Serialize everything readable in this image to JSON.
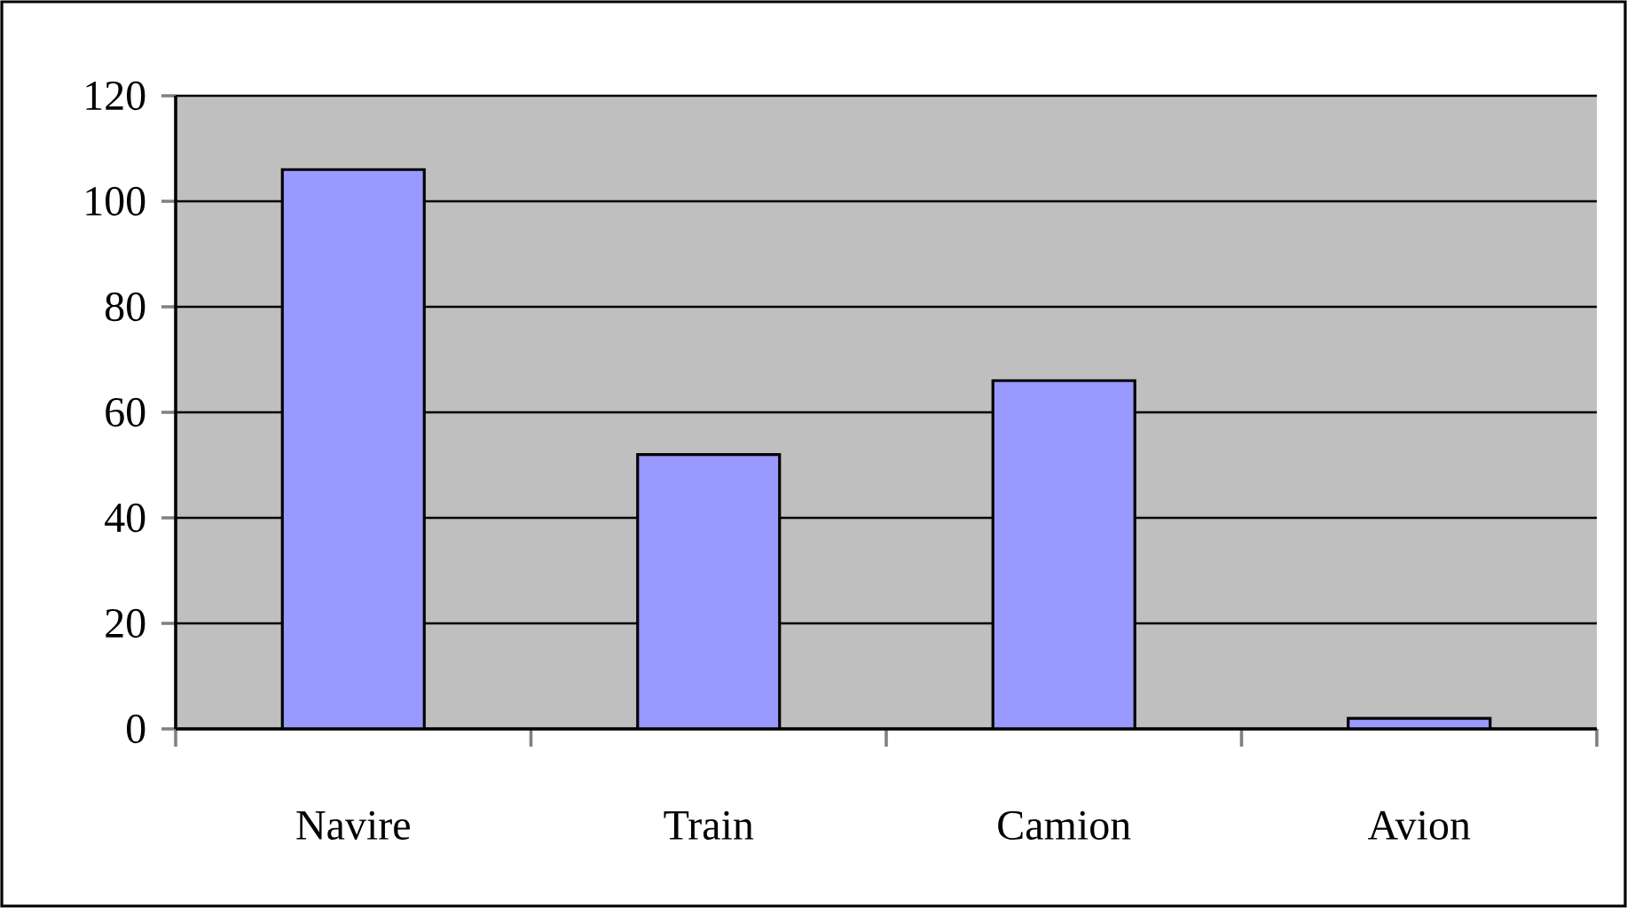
{
  "chart_data": {
    "type": "bar",
    "categories": [
      "Navire",
      "Train",
      "Camion",
      "Avion"
    ],
    "values": [
      106,
      52,
      66,
      2
    ],
    "color": "#9999ff",
    "ylim": [
      0,
      120
    ],
    "yticks": [
      0,
      20,
      40,
      60,
      80,
      100,
      120
    ],
    "grid": "y"
  }
}
